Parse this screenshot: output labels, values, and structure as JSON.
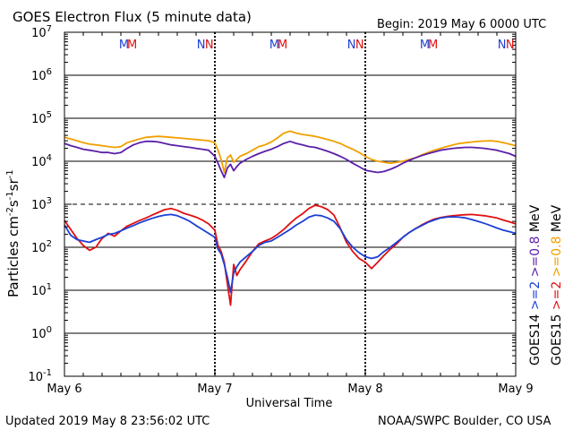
{
  "header": {
    "title": "GOES Electron Flux (5 minute data)",
    "begin": "Begin: 2019 May 6 0000 UTC"
  },
  "footer": {
    "updated": "Updated 2019 May  8 23:56:02 UTC",
    "source": "NOAA/SWPC Boulder, CO USA"
  },
  "chart_data": {
    "type": "line",
    "title": "GOES Electron Flux (5 minute data)",
    "xlabel": "Universal Time",
    "ylabel_parts": [
      "Particles cm",
      "-2",
      "s",
      "-1",
      "sr",
      "-1"
    ],
    "y_scale": "log",
    "ylim": [
      0.1,
      10000000
    ],
    "y_ticks": [
      {
        "value": 0.1,
        "base": "10",
        "exp": "-1"
      },
      {
        "value": 1,
        "base": "10",
        "exp": "0"
      },
      {
        "value": 10,
        "base": "10",
        "exp": "1"
      },
      {
        "value": 100,
        "base": "10",
        "exp": "2"
      },
      {
        "value": 1000,
        "base": "10",
        "exp": "3"
      },
      {
        "value": 10000,
        "base": "10",
        "exp": "4"
      },
      {
        "value": 100000,
        "base": "10",
        "exp": "5"
      },
      {
        "value": 1000000,
        "base": "10",
        "exp": "6"
      },
      {
        "value": 10000000,
        "base": "10",
        "exp": "7"
      }
    ],
    "xlim": [
      0,
      72
    ],
    "x_ticks": [
      {
        "hour": 0,
        "label": "May 6"
      },
      {
        "hour": 24,
        "label": "May 7"
      },
      {
        "hour": 48,
        "label": "May 8"
      },
      {
        "hour": 72,
        "label": "May 9"
      }
    ],
    "threshold_lines": [
      1000
    ],
    "grid": "horizontal at each decade",
    "markers": [
      {
        "hour": 9.5,
        "text": "M",
        "color": "#1c3fd6"
      },
      {
        "hour": 10.8,
        "text": "M",
        "color": "#e01010"
      },
      {
        "hour": 21.8,
        "text": "N",
        "color": "#1c3fd6"
      },
      {
        "hour": 23.1,
        "text": "N",
        "color": "#e01010"
      },
      {
        "hour": 33.5,
        "text": "M",
        "color": "#1c3fd6"
      },
      {
        "hour": 34.8,
        "text": "M",
        "color": "#e01010"
      },
      {
        "hour": 45.8,
        "text": "N",
        "color": "#1c3fd6"
      },
      {
        "hour": 47.1,
        "text": "N",
        "color": "#e01010"
      },
      {
        "hour": 57.5,
        "text": "M",
        "color": "#1c3fd6"
      },
      {
        "hour": 58.8,
        "text": "M",
        "color": "#e01010"
      },
      {
        "hour": 69.8,
        "text": "N",
        "color": "#1c3fd6"
      },
      {
        "hour": 71.1,
        "text": "N",
        "color": "#e01010"
      }
    ],
    "series": [
      {
        "name": ">=0.8 MeV",
        "satellite": "GOES15",
        "color": "#f0a000",
        "x": [
          0,
          1,
          2,
          3,
          4,
          5,
          6,
          7,
          8,
          9,
          10,
          11,
          12,
          13,
          14,
          15,
          16,
          17,
          18,
          19,
          20,
          21,
          22,
          23,
          24,
          24.5,
          25,
          25.5,
          26,
          26.5,
          27,
          27.5,
          28,
          29,
          30,
          31,
          32,
          33,
          34,
          35,
          36,
          37,
          38,
          39,
          40,
          41,
          42,
          43,
          44,
          45,
          46,
          47,
          48,
          49,
          50,
          51,
          52,
          53,
          54,
          55,
          56,
          57,
          58,
          59,
          60,
          61,
          62,
          63,
          64,
          65,
          66,
          67,
          68,
          69,
          70,
          71,
          72
        ],
        "y": [
          36000,
          33000,
          30000,
          27000,
          25000,
          24000,
          23000,
          22000,
          21000,
          22000,
          27000,
          30000,
          33000,
          36000,
          37000,
          38000,
          37000,
          36000,
          35000,
          34000,
          33000,
          32000,
          31000,
          30000,
          27000,
          18000,
          11000,
          5500,
          12000,
          14000,
          9500,
          11000,
          13000,
          15000,
          18000,
          22000,
          24000,
          28000,
          35000,
          45000,
          50000,
          45000,
          42000,
          40000,
          38000,
          35000,
          32000,
          29000,
          26000,
          22000,
          19000,
          16000,
          13000,
          11000,
          10000,
          9500,
          9000,
          9500,
          10000,
          11000,
          12000,
          14000,
          16000,
          18000,
          20000,
          22000,
          24000,
          26000,
          27000,
          28000,
          29000,
          29500,
          30000,
          29000,
          27000,
          25000,
          23000
        ]
      },
      {
        "name": ">=0.8 MeV",
        "satellite": "GOES14",
        "color": "#5a1fa8",
        "x": [
          0,
          1,
          2,
          3,
          4,
          5,
          6,
          7,
          8,
          9,
          10,
          11,
          12,
          13,
          14,
          15,
          16,
          17,
          18,
          19,
          20,
          21,
          22,
          23,
          24,
          24.5,
          25,
          25.5,
          26,
          26.5,
          27,
          27.5,
          28,
          29,
          30,
          31,
          32,
          33,
          34,
          35,
          36,
          37,
          38,
          39,
          40,
          41,
          42,
          43,
          44,
          45,
          46,
          47,
          48,
          49,
          50,
          51,
          52,
          53,
          54,
          55,
          56,
          57,
          58,
          59,
          60,
          61,
          62,
          63,
          64,
          65,
          66,
          67,
          68,
          69,
          70,
          71,
          72
        ],
        "y": [
          26000,
          23000,
          21000,
          19000,
          18000,
          17000,
          16000,
          16000,
          15000,
          16000,
          20000,
          24000,
          27000,
          29000,
          29000,
          28000,
          26000,
          24000,
          23000,
          22000,
          21000,
          20000,
          19000,
          18000,
          13000,
          9000,
          6000,
          4200,
          7000,
          8500,
          6000,
          7500,
          9000,
          11000,
          13000,
          15000,
          17000,
          19000,
          22000,
          26000,
          29000,
          26000,
          24000,
          22000,
          21000,
          19000,
          17000,
          15000,
          13000,
          11000,
          9000,
          7500,
          6200,
          5800,
          5500,
          5800,
          6500,
          7500,
          9000,
          10500,
          12000,
          13500,
          15000,
          16500,
          18000,
          19000,
          20000,
          20500,
          21000,
          21000,
          20500,
          20000,
          19000,
          18000,
          16500,
          15000,
          13000
        ]
      },
      {
        "name": ">=2 MeV",
        "satellite": "GOES15",
        "color": "#e01010",
        "x": [
          0,
          1,
          2,
          3,
          4,
          5,
          6,
          7,
          8,
          9,
          10,
          11,
          12,
          13,
          14,
          15,
          16,
          17,
          18,
          19,
          20,
          21,
          22,
          23,
          24,
          24.5,
          25,
          25.5,
          26,
          26.5,
          27,
          27.5,
          28,
          29,
          30,
          31,
          32,
          33,
          34,
          35,
          36,
          37,
          38,
          39,
          40,
          41,
          42,
          43,
          44,
          45,
          46,
          47,
          48,
          49,
          50,
          51,
          52,
          53,
          54,
          55,
          56,
          57,
          58,
          59,
          60,
          61,
          62,
          63,
          64,
          65,
          66,
          67,
          68,
          69,
          70,
          71,
          72
        ],
        "y": [
          420,
          260,
          160,
          110,
          85,
          100,
          160,
          210,
          180,
          240,
          310,
          360,
          420,
          480,
          560,
          650,
          750,
          800,
          720,
          620,
          560,
          500,
          430,
          350,
          250,
          110,
          80,
          45,
          14,
          4.5,
          40,
          22,
          30,
          48,
          80,
          120,
          140,
          160,
          200,
          260,
          360,
          480,
          600,
          800,
          950,
          880,
          750,
          560,
          280,
          130,
          80,
          55,
          45,
          32,
          45,
          65,
          90,
          120,
          170,
          220,
          270,
          330,
          390,
          450,
          490,
          520,
          540,
          560,
          570,
          580,
          560,
          540,
          510,
          480,
          430,
          390,
          350
        ]
      },
      {
        "name": ">=2 MeV",
        "satellite": "GOES14",
        "color": "#1c3fd6",
        "x": [
          0,
          1,
          2,
          3,
          4,
          5,
          6,
          7,
          8,
          9,
          10,
          11,
          12,
          13,
          14,
          15,
          16,
          17,
          18,
          19,
          20,
          21,
          22,
          23,
          24,
          24.5,
          25,
          25.5,
          26,
          26.5,
          27,
          27.5,
          28,
          29,
          30,
          31,
          32,
          33,
          34,
          35,
          36,
          37,
          38,
          39,
          40,
          41,
          42,
          43,
          44,
          45,
          46,
          47,
          48,
          49,
          50,
          51,
          52,
          53,
          54,
          55,
          56,
          57,
          58,
          59,
          60,
          61,
          62,
          63,
          64,
          65,
          66,
          67,
          68,
          69,
          70,
          71,
          72
        ],
        "y": [
          330,
          190,
          150,
          140,
          130,
          150,
          170,
          200,
          210,
          240,
          280,
          320,
          370,
          420,
          470,
          520,
          560,
          580,
          540,
          470,
          400,
          320,
          260,
          210,
          170,
          90,
          70,
          40,
          20,
          9,
          25,
          35,
          45,
          60,
          80,
          110,
          130,
          140,
          170,
          210,
          260,
          330,
          400,
          500,
          560,
          540,
          480,
          400,
          270,
          150,
          100,
          75,
          60,
          55,
          60,
          80,
          100,
          130,
          170,
          220,
          270,
          320,
          380,
          430,
          480,
          500,
          510,
          500,
          480,
          440,
          400,
          360,
          320,
          280,
          250,
          230,
          210
        ]
      }
    ],
    "legend_right": [
      {
        "satellite": "GOES14",
        "low_label": ">=2",
        "high_label": ">=0.8",
        "unit": "MeV",
        "low_color": "#1c3fd6",
        "high_color": "#5a1fa8"
      },
      {
        "satellite": "GOES15",
        "low_label": ">=2",
        "high_label": ">=0.8",
        "unit": "MeV",
        "low_color": "#e01010",
        "high_color": "#f0a000"
      }
    ]
  }
}
